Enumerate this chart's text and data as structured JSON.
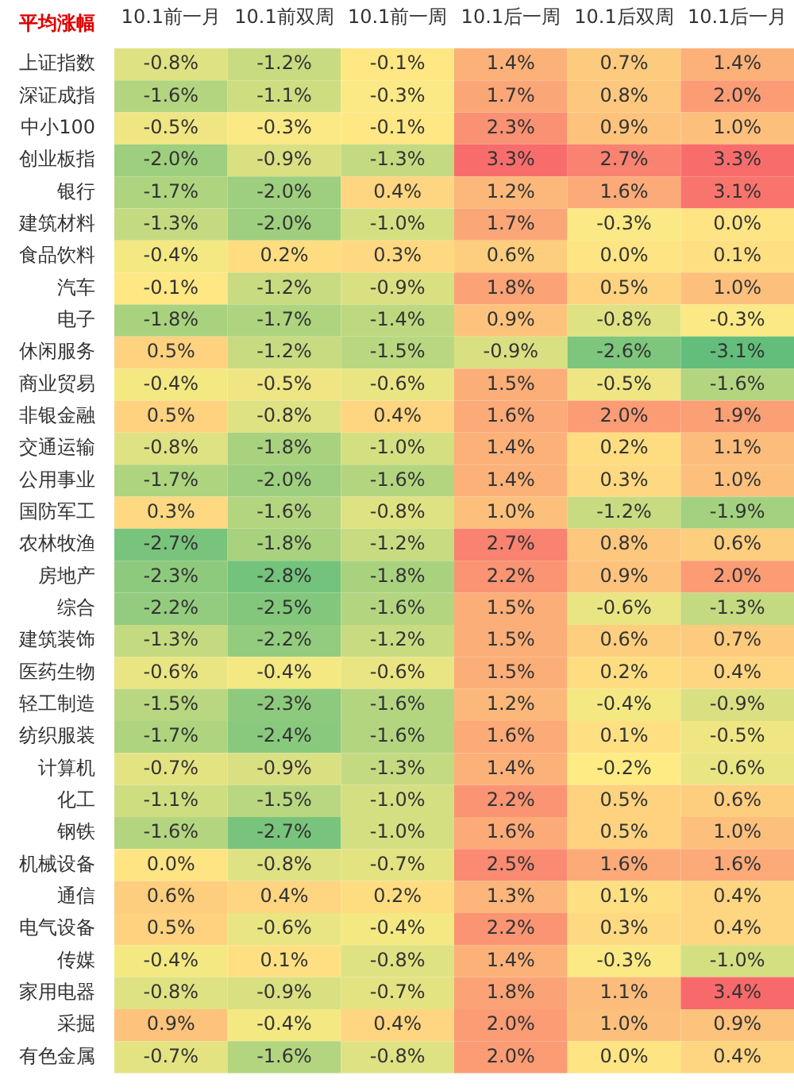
{
  "chart_data": {
    "type": "heatmap",
    "title": "平均涨幅",
    "categories": [
      "10.1前一月",
      "10.1前双周",
      "10.1前一周",
      "10.1后一周",
      "10.1后双周",
      "10.1后一月"
    ],
    "y_categories": [
      "上证指数",
      "深证成指",
      "中小100",
      "创业板指",
      "银行",
      "建筑材料",
      "食品饮料",
      "汽车",
      "电子",
      "休闲服务",
      "商业贸易",
      "非银金融",
      "交通运输",
      "公用事业",
      "国防军工",
      "农林牧渔",
      "房地产",
      "综合",
      "建筑装饰",
      "医药生物",
      "轻工制造",
      "纺织服装",
      "计算机",
      "化工",
      "钢铁",
      "机械设备",
      "通信",
      "电气设备",
      "传媒",
      "家用电器",
      "采掘",
      "有色金属"
    ],
    "cells": [
      [
        -0.8,
        -1.2,
        -0.1,
        1.4,
        0.7,
        1.4
      ],
      [
        -1.6,
        -1.1,
        -0.3,
        1.7,
        0.8,
        2.0
      ],
      [
        -0.5,
        -0.3,
        -0.1,
        2.3,
        0.9,
        1.0
      ],
      [
        -2.0,
        -0.9,
        -1.3,
        3.3,
        2.7,
        3.3
      ],
      [
        -1.7,
        -2.0,
        0.4,
        1.2,
        1.6,
        3.1
      ],
      [
        -1.3,
        -2.0,
        -1.0,
        1.7,
        -0.3,
        0.0
      ],
      [
        -0.4,
        0.2,
        0.3,
        0.6,
        0.0,
        0.1
      ],
      [
        -0.1,
        -1.2,
        -0.9,
        1.8,
        0.5,
        1.0
      ],
      [
        -1.8,
        -1.7,
        -1.4,
        0.9,
        -0.8,
        -0.3
      ],
      [
        0.5,
        -1.2,
        -1.5,
        -0.9,
        -2.6,
        -3.1
      ],
      [
        -0.4,
        -0.5,
        -0.6,
        1.5,
        -0.5,
        -1.6
      ],
      [
        0.5,
        -0.8,
        0.4,
        1.6,
        2.0,
        1.9
      ],
      [
        -0.8,
        -1.8,
        -1.0,
        1.4,
        0.2,
        1.1
      ],
      [
        -1.7,
        -2.0,
        -1.6,
        1.4,
        0.3,
        1.0
      ],
      [
        0.3,
        -1.6,
        -0.8,
        1.0,
        -1.2,
        -1.9
      ],
      [
        -2.7,
        -1.8,
        -1.2,
        2.7,
        0.8,
        0.6
      ],
      [
        -2.3,
        -2.8,
        -1.8,
        2.2,
        0.9,
        2.0
      ],
      [
        -2.2,
        -2.5,
        -1.6,
        1.5,
        -0.6,
        -1.3
      ],
      [
        -1.3,
        -2.2,
        -1.2,
        1.5,
        0.6,
        0.7
      ],
      [
        -0.6,
        -0.4,
        -0.6,
        1.5,
        0.2,
        0.4
      ],
      [
        -1.5,
        -2.3,
        -1.6,
        1.2,
        -0.4,
        -0.9
      ],
      [
        -1.7,
        -2.4,
        -1.6,
        1.6,
        0.1,
        -0.5
      ],
      [
        -0.7,
        -0.9,
        -1.3,
        1.4,
        -0.2,
        -0.6
      ],
      [
        -1.1,
        -1.5,
        -1.0,
        2.2,
        0.5,
        0.6
      ],
      [
        -1.6,
        -2.7,
        -1.0,
        1.6,
        0.5,
        1.0
      ],
      [
        0.0,
        -0.8,
        -0.7,
        2.5,
        1.6,
        1.6
      ],
      [
        0.6,
        0.4,
        0.2,
        1.3,
        0.1,
        0.4
      ],
      [
        0.5,
        -0.6,
        -0.4,
        2.2,
        0.3,
        0.4
      ],
      [
        -0.4,
        0.1,
        -0.8,
        1.4,
        -0.3,
        -1.0
      ],
      [
        -0.8,
        -0.9,
        -0.7,
        1.8,
        1.1,
        3.4
      ],
      [
        0.9,
        -0.4,
        0.4,
        2.0,
        1.0,
        0.9
      ],
      [
        -0.7,
        -1.6,
        -0.8,
        2.0,
        0.0,
        0.4
      ]
    ],
    "cell_labels": [
      [
        "-0.8%",
        "-1.2%",
        "-0.1%",
        "1.4%",
        "0.7%",
        "1.4%"
      ],
      [
        "-1.6%",
        "-1.1%",
        "-0.3%",
        "1.7%",
        "0.8%",
        "2.0%"
      ],
      [
        "-0.5%",
        "-0.3%",
        "-0.1%",
        "2.3%",
        "0.9%",
        "1.0%"
      ],
      [
        "-2.0%",
        "-0.9%",
        "-1.3%",
        "3.3%",
        "2.7%",
        "3.3%"
      ],
      [
        "-1.7%",
        "-2.0%",
        "0.4%",
        "1.2%",
        "1.6%",
        "3.1%"
      ],
      [
        "-1.3%",
        "-2.0%",
        "-1.0%",
        "1.7%",
        "-0.3%",
        "0.0%"
      ],
      [
        "-0.4%",
        "0.2%",
        "0.3%",
        "0.6%",
        "0.0%",
        "0.1%"
      ],
      [
        "-0.1%",
        "-1.2%",
        "-0.9%",
        "1.8%",
        "0.5%",
        "1.0%"
      ],
      [
        "-1.8%",
        "-1.7%",
        "-1.4%",
        "0.9%",
        "-0.8%",
        "-0.3%"
      ],
      [
        "0.5%",
        "-1.2%",
        "-1.5%",
        "-0.9%",
        "-2.6%",
        "-3.1%"
      ],
      [
        "-0.4%",
        "-0.5%",
        "-0.6%",
        "1.5%",
        "-0.5%",
        "-1.6%"
      ],
      [
        "0.5%",
        "-0.8%",
        "0.4%",
        "1.6%",
        "2.0%",
        "1.9%"
      ],
      [
        "-0.8%",
        "-1.8%",
        "-1.0%",
        "1.4%",
        "0.2%",
        "1.1%"
      ],
      [
        "-1.7%",
        "-2.0%",
        "-1.6%",
        "1.4%",
        "0.3%",
        "1.0%"
      ],
      [
        "0.3%",
        "-1.6%",
        "-0.8%",
        "1.0%",
        "-1.2%",
        "-1.9%"
      ],
      [
        "-2.7%",
        "-1.8%",
        "-1.2%",
        "2.7%",
        "0.8%",
        "0.6%"
      ],
      [
        "-2.3%",
        "-2.8%",
        "-1.8%",
        "2.2%",
        "0.9%",
        "2.0%"
      ],
      [
        "-2.2%",
        "-2.5%",
        "-1.6%",
        "1.5%",
        "-0.6%",
        "-1.3%"
      ],
      [
        "-1.3%",
        "-2.2%",
        "-1.2%",
        "1.5%",
        "0.6%",
        "0.7%"
      ],
      [
        "-0.6%",
        "-0.4%",
        "-0.6%",
        "1.5%",
        "0.2%",
        "0.4%"
      ],
      [
        "-1.5%",
        "-2.3%",
        "-1.6%",
        "1.2%",
        "-0.4%",
        "-0.9%"
      ],
      [
        "-1.7%",
        "-2.4%",
        "-1.6%",
        "1.6%",
        "0.1%",
        "-0.5%"
      ],
      [
        "-0.7%",
        "-0.9%",
        "-1.3%",
        "1.4%",
        "-0.2%",
        "-0.6%"
      ],
      [
        "-1.1%",
        "-1.5%",
        "-1.0%",
        "2.2%",
        "0.5%",
        "0.6%"
      ],
      [
        "-1.6%",
        "-2.7%",
        "-1.0%",
        "1.6%",
        "0.5%",
        "1.0%"
      ],
      [
        "0.0%",
        "-0.8%",
        "-0.7%",
        "2.5%",
        "1.6%",
        "1.6%"
      ],
      [
        "0.6%",
        "0.4%",
        "0.2%",
        "1.3%",
        "0.1%",
        "0.4%"
      ],
      [
        "0.5%",
        "-0.6%",
        "-0.4%",
        "2.2%",
        "0.3%",
        "0.4%"
      ],
      [
        "-0.4%",
        "0.1%",
        "-0.8%",
        "1.4%",
        "-0.3%",
        "-1.0%"
      ],
      [
        "-0.8%",
        "-0.9%",
        "-0.7%",
        "1.8%",
        "1.1%",
        "3.4%"
      ],
      [
        "0.9%",
        "-0.4%",
        "0.4%",
        "2.0%",
        "1.0%",
        "0.9%"
      ],
      [
        "-0.7%",
        "-1.6%",
        "-0.8%",
        "2.0%",
        "0.0%",
        "0.4%"
      ]
    ]
  }
}
